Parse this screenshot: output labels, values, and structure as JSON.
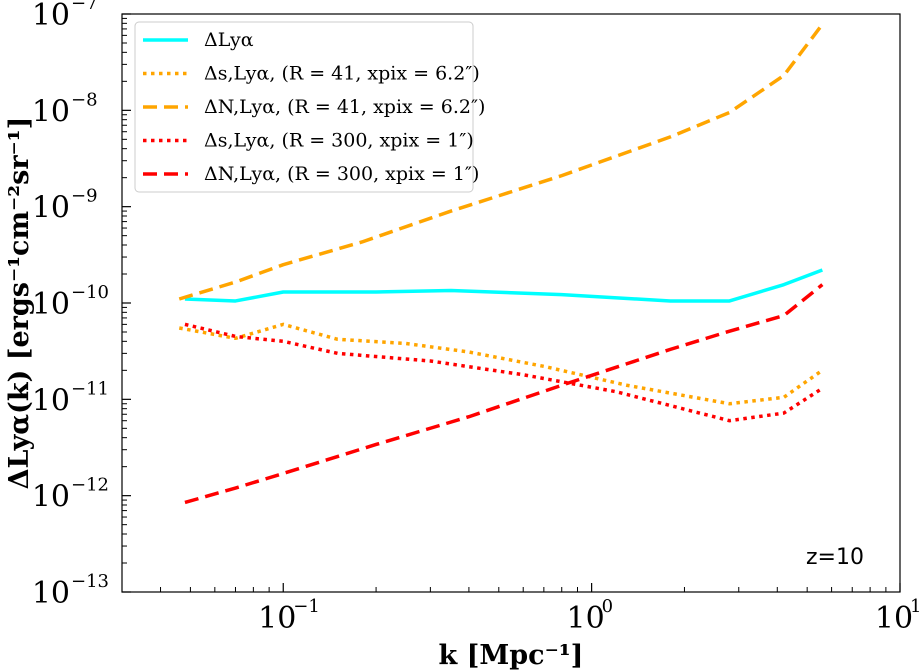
{
  "chart_data": {
    "type": "line",
    "xscale": "log",
    "yscale": "log",
    "xlim": [
      0.03,
      10
    ],
    "ylim": [
      1e-13,
      1e-07
    ],
    "xlabel": "k [Mpc⁻¹]",
    "ylabel": "ΔLyα(k) [ergs⁻¹cm⁻²sr⁻¹]",
    "x_ticks": [
      {
        "value": 0.1,
        "base": "10",
        "exp": "−1"
      },
      {
        "value": 1,
        "base": "10",
        "exp": "0"
      },
      {
        "value": 10,
        "base": "10",
        "exp": "1"
      }
    ],
    "y_ticks": [
      {
        "value": 1e-13,
        "base": "10",
        "exp": "−13"
      },
      {
        "value": 1e-12,
        "base": "10",
        "exp": "−12"
      },
      {
        "value": 1e-11,
        "base": "10",
        "exp": "−11"
      },
      {
        "value": 1e-10,
        "base": "10",
        "exp": "−10"
      },
      {
        "value": 1e-09,
        "base": "10",
        "exp": "−9"
      },
      {
        "value": 1e-08,
        "base": "10",
        "exp": "−8"
      },
      {
        "value": 1e-07,
        "base": "10",
        "exp": "−7"
      }
    ],
    "annotation": "z=10",
    "legend_position": "top-left",
    "series": [
      {
        "name": "ΔLyα",
        "color": "#00ffff",
        "style": "solid",
        "x": [
          0.048,
          0.07,
          0.1,
          0.2,
          0.35,
          0.8,
          1.8,
          2.8,
          4.2,
          5.6
        ],
        "y": [
          1.1e-10,
          1.05e-10,
          1.3e-10,
          1.3e-10,
          1.35e-10,
          1.22e-10,
          1.05e-10,
          1.05e-10,
          1.55e-10,
          2.2e-10
        ]
      },
      {
        "name": "Δs,Lyα, (R = 41, xpix = 6.2″)",
        "color": "#ffa500",
        "style": "dotted",
        "x": [
          0.046,
          0.07,
          0.1,
          0.15,
          0.25,
          0.4,
          0.7,
          1.3,
          2.8,
          4.2,
          5.6
        ],
        "y": [
          5.5e-11,
          4.3e-11,
          6e-11,
          4.2e-11,
          3.8e-11,
          3.1e-11,
          2.2e-11,
          1.4e-11,
          9e-12,
          1.05e-11,
          2e-11
        ]
      },
      {
        "name": "ΔN,Lyα, (R = 41, xpix = 6.2″)",
        "color": "#ffa500",
        "style": "dashed",
        "x": [
          0.046,
          0.07,
          0.1,
          0.18,
          0.35,
          0.8,
          1.8,
          2.8,
          4.2,
          5.6
        ],
        "y": [
          1.1e-10,
          1.65e-10,
          2.5e-10,
          4.3e-10,
          9e-10,
          2.1e-09,
          5.3e-09,
          9.5e-09,
          2.3e-08,
          7.8e-08
        ]
      },
      {
        "name": "Δs,Lyα, (R = 300, xpix = 1″)",
        "color": "#ff0000",
        "style": "dotted",
        "x": [
          0.048,
          0.07,
          0.1,
          0.15,
          0.3,
          0.6,
          1.2,
          2.8,
          4.2,
          5.6
        ],
        "y": [
          6e-11,
          4.5e-11,
          4e-11,
          3e-11,
          2.5e-11,
          1.8e-11,
          1.2e-11,
          6e-12,
          7.2e-12,
          1.3e-11
        ]
      },
      {
        "name": "ΔN,Lyα, (R = 300, xpix = 1″)",
        "color": "#ff0000",
        "style": "dashed",
        "x": [
          0.048,
          0.07,
          0.1,
          0.2,
          0.4,
          0.8,
          1.8,
          2.8,
          4.2,
          5.6
        ],
        "y": [
          8.5e-13,
          1.2e-12,
          1.7e-12,
          3.4e-12,
          6.6e-12,
          1.4e-11,
          3.3e-11,
          5.1e-11,
          7.4e-11,
          1.55e-10
        ]
      }
    ]
  }
}
